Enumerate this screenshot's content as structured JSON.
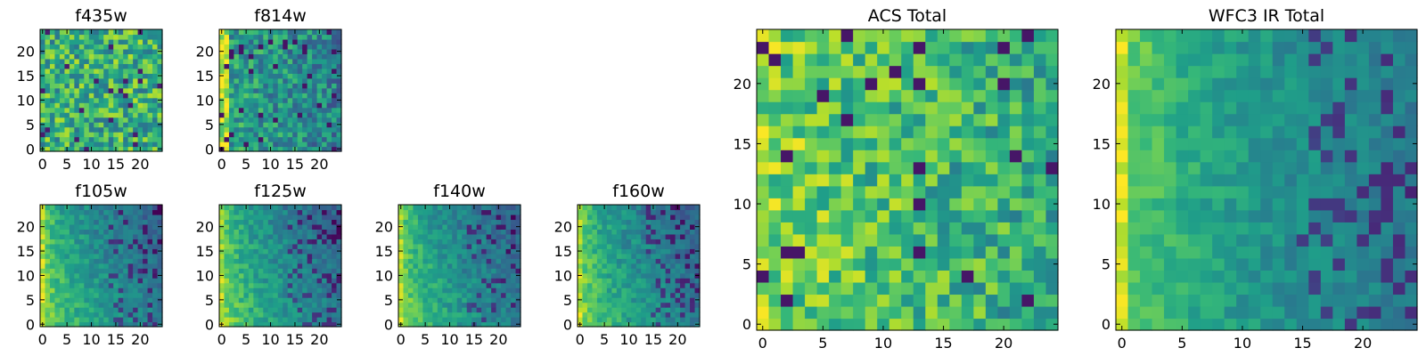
{
  "figure": {
    "colormap": "viridis"
  },
  "chart_data": [
    {
      "id": "f435w",
      "type": "heatmap",
      "title": "f435w",
      "grid_size": 25,
      "xlim": [
        0,
        24
      ],
      "ylim": [
        0,
        24
      ],
      "xticks": [
        0,
        5,
        10,
        15,
        20
      ],
      "yticks": [
        0,
        5,
        10,
        15,
        20
      ],
      "pattern": "uniform-bright-noisy",
      "value_range": [
        0,
        1
      ]
    },
    {
      "id": "f814w",
      "type": "heatmap",
      "title": "f814w",
      "grid_size": 25,
      "xlim": [
        0,
        24
      ],
      "ylim": [
        0,
        24
      ],
      "xticks": [
        0,
        5,
        10,
        15,
        20
      ],
      "yticks": [
        0,
        5,
        10,
        15,
        20
      ],
      "pattern": "mid-noisy-bright-left-edge",
      "value_range": [
        0,
        1
      ]
    },
    {
      "id": "f105w",
      "type": "heatmap",
      "title": "f105w",
      "grid_size": 25,
      "xlim": [
        0,
        24
      ],
      "ylim": [
        0,
        24
      ],
      "xticks": [
        0,
        5,
        10,
        15,
        20
      ],
      "yticks": [
        0,
        5,
        10,
        15,
        20
      ],
      "pattern": "gradient-bright-lower-left",
      "value_range": [
        0,
        1
      ]
    },
    {
      "id": "f125w",
      "type": "heatmap",
      "title": "f125w",
      "grid_size": 25,
      "xlim": [
        0,
        24
      ],
      "ylim": [
        0,
        24
      ],
      "xticks": [
        0,
        5,
        10,
        15,
        20
      ],
      "yticks": [
        0,
        5,
        10,
        15,
        20
      ],
      "pattern": "gradient-bright-lower-left",
      "value_range": [
        0,
        1
      ]
    },
    {
      "id": "f140w",
      "type": "heatmap",
      "title": "f140w",
      "grid_size": 25,
      "xlim": [
        0,
        24
      ],
      "ylim": [
        0,
        24
      ],
      "xticks": [
        0,
        5,
        10,
        15,
        20
      ],
      "yticks": [
        0,
        5,
        10,
        15,
        20
      ],
      "pattern": "gradient-bright-lower-left",
      "value_range": [
        0,
        1
      ]
    },
    {
      "id": "f160w",
      "type": "heatmap",
      "title": "f160w",
      "grid_size": 25,
      "xlim": [
        0,
        24
      ],
      "ylim": [
        0,
        24
      ],
      "xticks": [
        0,
        5,
        10,
        15,
        20
      ],
      "yticks": [
        0,
        5,
        10,
        15,
        20
      ],
      "pattern": "gradient-bright-lower-left",
      "value_range": [
        0,
        1
      ]
    },
    {
      "id": "acs-total",
      "type": "heatmap",
      "title": "ACS Total",
      "grid_size": 25,
      "xlim": [
        0,
        24
      ],
      "ylim": [
        0,
        24
      ],
      "xticks": [
        0,
        5,
        10,
        15,
        20
      ],
      "yticks": [
        0,
        5,
        10,
        15,
        20
      ],
      "pattern": "bright-noisy-left-brighter",
      "value_range": [
        0,
        1
      ]
    },
    {
      "id": "wfc3-ir-total",
      "type": "heatmap",
      "title": "WFC3 IR Total",
      "grid_size": 25,
      "xlim": [
        0,
        24
      ],
      "ylim": [
        0,
        24
      ],
      "xticks": [
        0,
        5,
        10,
        15,
        20
      ],
      "yticks": [
        0,
        5,
        10,
        15,
        20
      ],
      "pattern": "gradient-bright-left-edge",
      "value_range": [
        0,
        1
      ]
    }
  ]
}
